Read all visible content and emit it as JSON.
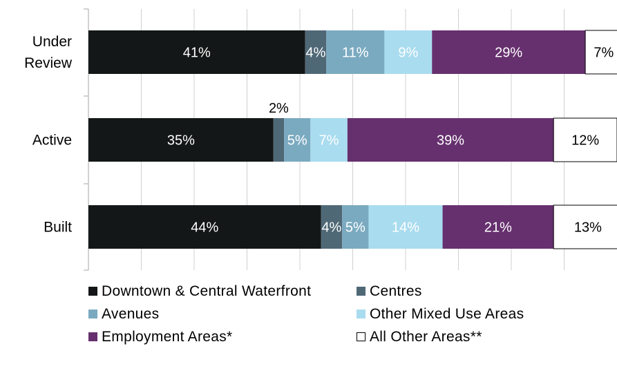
{
  "chart_data": {
    "type": "bar",
    "orientation": "horizontal",
    "stacked": true,
    "percent": true,
    "categories": [
      "Under Review",
      "Active",
      "Built"
    ],
    "category_lines": [
      [
        "Under",
        "Review"
      ],
      [
        "Active"
      ],
      [
        "Built"
      ]
    ],
    "series": [
      {
        "name": "Downtown & Central Waterfront",
        "color": "#141717",
        "label_color": "#ffffff",
        "values": [
          41,
          35,
          44
        ],
        "labels": [
          "41%",
          "35%",
          "44%"
        ]
      },
      {
        "name": "Centres",
        "color": "#4f6876",
        "label_color": "#ffffff",
        "values": [
          4,
          2,
          4
        ],
        "labels": [
          "4%",
          "2%",
          "4%"
        ]
      },
      {
        "name": "Avenues",
        "color": "#7aaac0",
        "label_color": "#ffffff",
        "values": [
          11,
          5,
          5
        ],
        "labels": [
          "11%",
          "5%",
          "5%"
        ]
      },
      {
        "name": "Other Mixed Use Areas",
        "color": "#a9dcef",
        "label_color": "#ffffff",
        "values": [
          9,
          7,
          14
        ],
        "labels": [
          "9%",
          "7%",
          "14%"
        ]
      },
      {
        "name": "Employment Areas*",
        "color": "#66306e",
        "label_color": "#ffffff",
        "values": [
          29,
          39,
          21
        ],
        "labels": [
          "29%",
          "39%",
          "21%"
        ]
      },
      {
        "name": "All Other Areas**",
        "color": "#ffffff",
        "label_color": "#000000",
        "values": [
          7,
          12,
          13
        ],
        "labels": [
          "7%",
          "12%",
          "13%"
        ]
      }
    ],
    "xlim": [
      0,
      100
    ],
    "grid": true,
    "legend_position": "bottom"
  }
}
